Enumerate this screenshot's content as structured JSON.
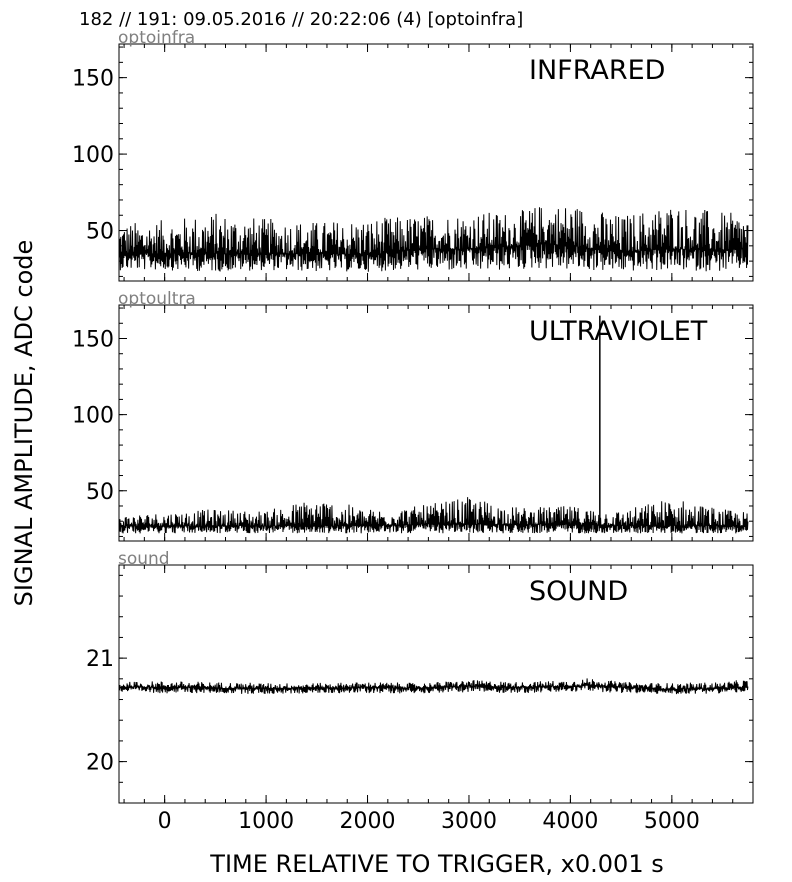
{
  "header": {
    "text": "182 // 191:   09.05.2016 // 20:22:06 (4)  [optoinfra]"
  },
  "chart_data": {
    "type": "line",
    "xlabel": "TIME RELATIVE TO TRIGGER,   x0.001 s",
    "ylabel": "SIGNAL AMPLITUDE,  ADC code",
    "xlim": [
      -450,
      5800
    ],
    "x_ticks": [
      "0",
      "1000",
      "2000",
      "3000",
      "4000",
      "5000"
    ],
    "x_tick_values": [
      0,
      1000,
      2000,
      3000,
      4000,
      5000
    ],
    "grid": false,
    "panels": [
      {
        "tag": "optoinfra",
        "title": "INFRARED",
        "ylim": [
          17,
          172
        ],
        "y_ticks": [
          "50",
          "100",
          "150"
        ],
        "y_tick_values": [
          50,
          100,
          150
        ],
        "series": [
          {
            "x": [
              -450,
              0,
              500,
              1000,
              1500,
              2000,
              2500,
              3000,
              3500,
              3700,
              4000,
              4500,
              5000,
              5500,
              5750
            ],
            "y_mean": [
              35,
              35,
              35,
              35,
              35,
              34,
              38,
              38,
              40,
              42,
              40,
              36,
              38,
              37,
              38
            ],
            "y_min": [
              24,
              24,
              23,
              24,
              23,
              23,
              24,
              23,
              24,
              25,
              24,
              23,
              24,
              23,
              24
            ],
            "y_max": [
              55,
              57,
              62,
              58,
              56,
              58,
              60,
              62,
              63,
              67,
              68,
              60,
              68,
              62,
              61
            ]
          }
        ]
      },
      {
        "tag": "optoultra",
        "title": "ULTRAVIOLET",
        "ylim": [
          17,
          172
        ],
        "y_ticks": [
          "50",
          "100",
          "150"
        ],
        "y_tick_values": [
          50,
          100,
          150
        ],
        "series": [
          {
            "x": [
              -450,
              0,
              500,
              1000,
              1500,
              2000,
              2500,
              3000,
              3500,
              4000,
              4500,
              5000,
              5500,
              5750
            ],
            "y_mean": [
              27,
              27,
              27,
              27,
              27,
              27,
              28,
              28,
              28,
              28,
              27,
              27,
              27,
              27
            ],
            "y_min": [
              22,
              22,
              22,
              22,
              22,
              22,
              22,
              22,
              22,
              22,
              22,
              22,
              22,
              22
            ],
            "y_max": [
              34,
              36,
              38,
              37,
              46,
              38,
              40,
              46,
              39,
              40,
              37,
              46,
              38,
              36
            ],
            "spikes": [
              {
                "x": 4290,
                "y": 165
              }
            ]
          }
        ]
      },
      {
        "tag": "sound",
        "title": "SOUND",
        "ylim": [
          19.6,
          21.9
        ],
        "y_ticks": [
          "20",
          "21"
        ],
        "y_tick_values": [
          20,
          21
        ],
        "series": [
          {
            "x": [
              -450,
              0,
              500,
              1000,
              1500,
              2000,
              2500,
              3000,
              3500,
              4000,
              4200,
              4500,
              5000,
              5500,
              5750
            ],
            "y_mean": [
              20.72,
              20.72,
              20.71,
              20.71,
              20.71,
              20.72,
              20.71,
              20.73,
              20.72,
              20.73,
              20.74,
              20.72,
              20.7,
              20.71,
              20.72
            ],
            "y_min": [
              20.67,
              20.66,
              20.66,
              20.65,
              20.66,
              20.66,
              20.66,
              20.67,
              20.66,
              20.67,
              20.68,
              20.66,
              20.65,
              20.66,
              20.67
            ],
            "y_max": [
              20.77,
              20.78,
              20.77,
              20.76,
              20.76,
              20.77,
              20.76,
              20.79,
              20.77,
              20.79,
              20.81,
              20.77,
              20.76,
              20.77,
              20.8
            ]
          }
        ]
      }
    ]
  }
}
